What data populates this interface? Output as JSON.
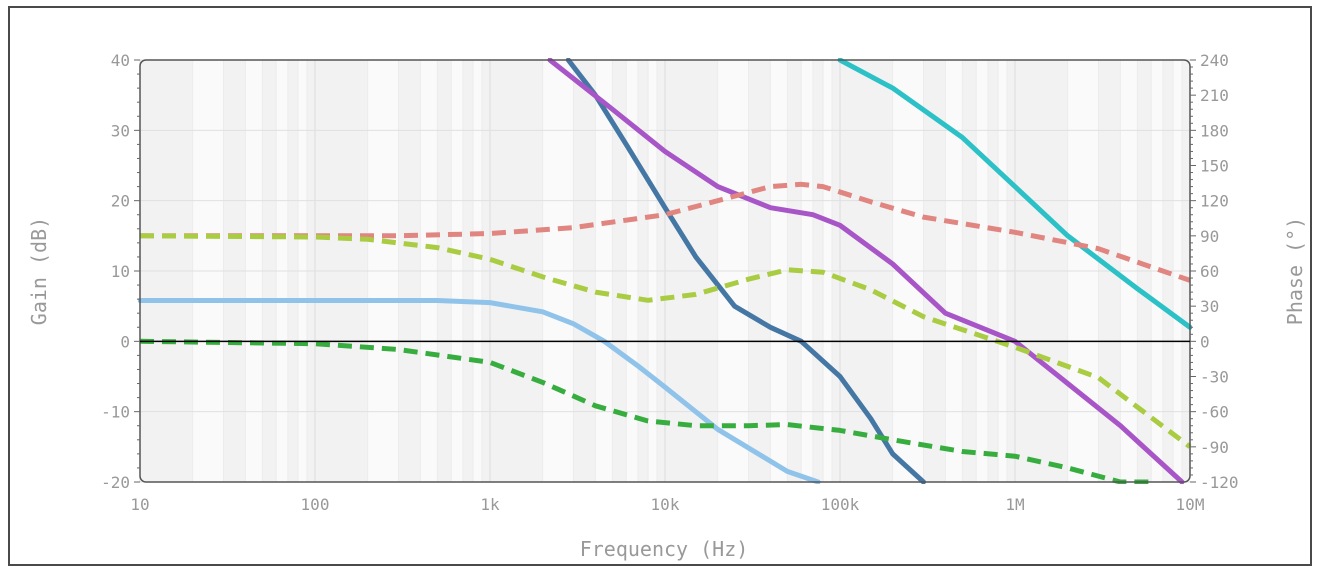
{
  "chart_data": {
    "type": "line",
    "title": "",
    "xlabel": "Frequency (Hz)",
    "ylabel_left": "Gain (dB)",
    "ylabel_right": "Phase (°)",
    "x_scale": "log",
    "xlim": [
      10,
      10000000
    ],
    "ylim_left": [
      -20,
      40
    ],
    "ylim_right": [
      -120,
      240
    ],
    "x_ticks": [
      {
        "value": 10,
        "label": "10"
      },
      {
        "value": 100,
        "label": "100"
      },
      {
        "value": 1000,
        "label": "1k"
      },
      {
        "value": 10000,
        "label": "10k"
      },
      {
        "value": 100000,
        "label": "100k"
      },
      {
        "value": 1000000,
        "label": "1M"
      },
      {
        "value": 10000000,
        "label": "10M"
      }
    ],
    "y_left_ticks": [
      {
        "value": 40,
        "label": "40"
      },
      {
        "value": 30,
        "label": "30"
      },
      {
        "value": 20,
        "label": "20"
      },
      {
        "value": 10,
        "label": "10"
      },
      {
        "value": 0,
        "label": "0"
      },
      {
        "value": -10,
        "label": "-10"
      },
      {
        "value": -20,
        "label": "-20"
      }
    ],
    "y_right_ticks": [
      {
        "value": 240,
        "label": "240"
      },
      {
        "value": 210,
        "label": "210"
      },
      {
        "value": 180,
        "label": "180"
      },
      {
        "value": 150,
        "label": "150"
      },
      {
        "value": 120,
        "label": "120"
      },
      {
        "value": 90,
        "label": "90"
      },
      {
        "value": 60,
        "label": "60"
      },
      {
        "value": 30,
        "label": "30"
      },
      {
        "value": 0,
        "label": "0"
      },
      {
        "value": -30,
        "label": "-30"
      },
      {
        "value": -60,
        "label": "-60"
      },
      {
        "value": -90,
        "label": "-90"
      },
      {
        "value": -120,
        "label": "-120"
      }
    ],
    "grid": true,
    "legend": "none",
    "series": [
      {
        "axis": "left",
        "style": "solid",
        "color": "#8fc3ea",
        "x": [
          10,
          100,
          500,
          1000,
          2000,
          3000,
          4500,
          7000,
          10000,
          20000,
          50000,
          75000
        ],
        "y": [
          5.8,
          5.8,
          5.8,
          5.5,
          4.2,
          2.5,
          0,
          -3.5,
          -6.5,
          -12.5,
          -18.5,
          -20
        ]
      },
      {
        "axis": "left",
        "style": "solid",
        "color": "#4577a5",
        "x": [
          2800,
          4000,
          6000,
          10000,
          15000,
          25000,
          40000,
          60000,
          100000,
          150000,
          200000,
          300000
        ],
        "y": [
          40,
          35,
          28,
          19,
          12,
          5,
          2,
          0,
          -5,
          -11,
          -16,
          -20
        ]
      },
      {
        "axis": "left",
        "style": "solid",
        "color": "#a855c8",
        "x": [
          2200,
          5000,
          10000,
          20000,
          40000,
          70000,
          100000,
          200000,
          400000,
          1000000,
          2000000,
          4000000,
          6000000,
          9000000
        ],
        "y": [
          40,
          33,
          27,
          22,
          19,
          18,
          16.5,
          11,
          4,
          0,
          -6,
          -12,
          -16,
          -20
        ]
      },
      {
        "axis": "left",
        "style": "solid",
        "color": "#2bc1c7",
        "x": [
          100000,
          200000,
          500000,
          1000000,
          2000000,
          5000000,
          10000000
        ],
        "y": [
          40,
          36,
          29,
          22,
          15,
          7.5,
          2
        ]
      },
      {
        "axis": "right",
        "style": "dashed",
        "color": "#e08580",
        "x": [
          10,
          300,
          1000,
          3000,
          10000,
          20000,
          40000,
          60000,
          80000,
          150000,
          300000,
          1000000,
          3000000,
          10000000
        ],
        "y": [
          90,
          90,
          92,
          97,
          108,
          120,
          132,
          134,
          132,
          119,
          106,
          93,
          79,
          52
        ]
      },
      {
        "axis": "right",
        "style": "dashed",
        "color": "#a9cc43",
        "x": [
          10,
          100,
          200,
          500,
          1000,
          2000,
          4000,
          8000,
          15000,
          30000,
          50000,
          80000,
          150000,
          300000,
          1000000,
          3000000,
          10000000
        ],
        "y": [
          90,
          89,
          87,
          80,
          70,
          55,
          42,
          35,
          40,
          53,
          61,
          59,
          44,
          21,
          -5,
          -31,
          -90
        ]
      },
      {
        "axis": "right",
        "style": "dashed",
        "color": "#37ad3f",
        "x": [
          10,
          100,
          300,
          1000,
          2000,
          4000,
          8000,
          15000,
          30000,
          50000,
          100000,
          200000,
          500000,
          1000000,
          2000000,
          4000000,
          6000000
        ],
        "y": [
          0,
          -2,
          -7,
          -18,
          -35,
          -55,
          -68,
          -72,
          -72,
          -71,
          -76,
          -84,
          -94,
          -98,
          -108,
          -120,
          -120
        ]
      }
    ]
  }
}
